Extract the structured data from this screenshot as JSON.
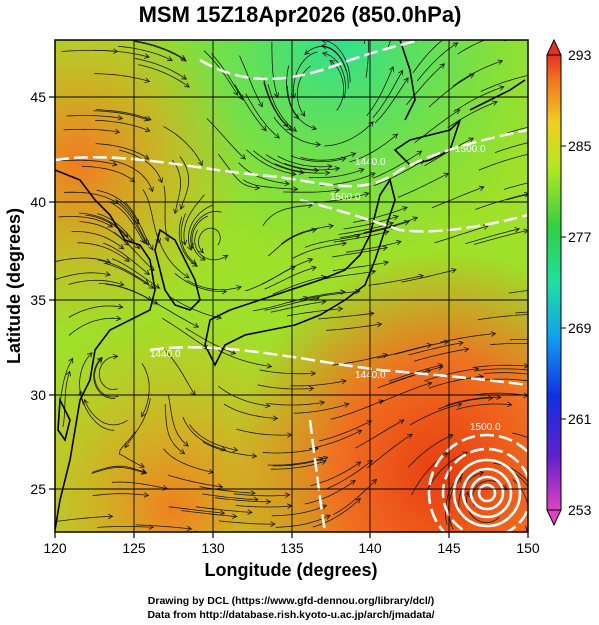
{
  "title": "MSM 15Z18Apr2026 (850.0hPa)",
  "axes": {
    "xlabel": "Longitude (degrees)",
    "ylabel": "Latitude  (degrees)",
    "xticks": [
      "120",
      "125",
      "130",
      "135",
      "140",
      "145",
      "150"
    ],
    "yticks": [
      "25",
      "30",
      "35",
      "40",
      "45"
    ],
    "xrange": [
      120,
      150
    ],
    "yrange": [
      22.4,
      47.6
    ]
  },
  "colorbar": {
    "labels": [
      "293",
      "285",
      "277",
      "269",
      "261",
      "253"
    ],
    "min": 253,
    "max": 293
  },
  "contour_labels": [
    "1500.0",
    "1440.0",
    "1500.0",
    "1440.0",
    "1440.0",
    "1500.0"
  ],
  "credits": {
    "line1": "Drawing by DCL (https://www.gfd-dennou.org/library/dcl/)",
    "line2": "Data from http://database.rish.kyoto-u.ac.jp/arch/jmadata/"
  },
  "colors": {
    "warm": "#e8501e",
    "mid": "#a8e020",
    "cool": "#30e080"
  }
}
